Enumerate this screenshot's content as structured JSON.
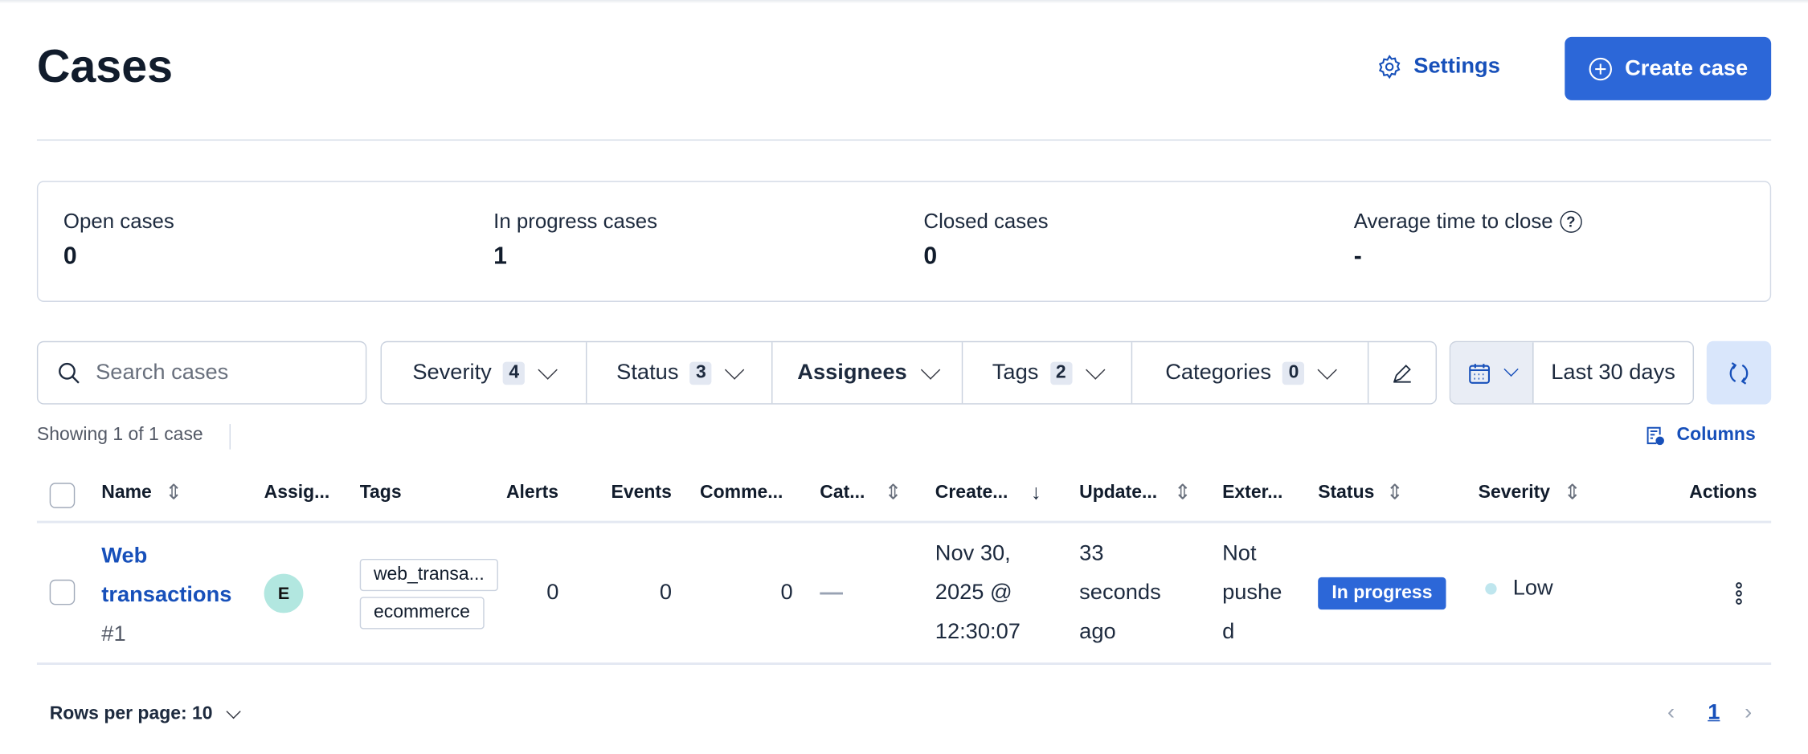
{
  "header": {
    "title": "Cases",
    "settings_label": "Settings",
    "create_label": "Create case"
  },
  "stats": [
    {
      "label": "Open cases",
      "value": "0"
    },
    {
      "label": "In progress cases",
      "value": "1"
    },
    {
      "label": "Closed cases",
      "value": "0"
    },
    {
      "label": "Average time to close",
      "value": "-"
    }
  ],
  "filters": {
    "search_placeholder": "Search cases",
    "severity": {
      "label": "Severity",
      "count": "4"
    },
    "status": {
      "label": "Status",
      "count": "3"
    },
    "assignees": {
      "label": "Assignees"
    },
    "tags": {
      "label": "Tags",
      "count": "2"
    },
    "categories": {
      "label": "Categories",
      "count": "0"
    },
    "date_range": "Last 30 days"
  },
  "table": {
    "showing": "Showing 1 of 1 case",
    "columns_label": "Columns",
    "headers": [
      "Name",
      "Assig...",
      "Tags",
      "Alerts",
      "Events",
      "Comme...",
      "Cat...",
      "Create...",
      "Update...",
      "Exter...",
      "Status",
      "Severity",
      "Actions"
    ],
    "rows": [
      {
        "name_line1": "Web",
        "name_line2": "transactions",
        "number": "#1",
        "assignee_initial": "E",
        "tags": [
          "web_transa...",
          "ecommerce"
        ],
        "alerts": "0",
        "events": "0",
        "comments": "0",
        "created": [
          "Nov 30,",
          "2025 @",
          "12:30:07"
        ],
        "updated": [
          "33",
          "seconds",
          "ago"
        ],
        "external": [
          "Not",
          "pushe",
          "d"
        ],
        "status": "In progress",
        "severity": "Low"
      }
    ]
  },
  "footer": {
    "rows_per_page": "Rows per page: 10",
    "current_page": "1"
  },
  "colors": {
    "primary": "#2c67d8",
    "link": "#1750ba",
    "severity_low": "#bfe6ee",
    "avatar": "#b2e7e0"
  }
}
